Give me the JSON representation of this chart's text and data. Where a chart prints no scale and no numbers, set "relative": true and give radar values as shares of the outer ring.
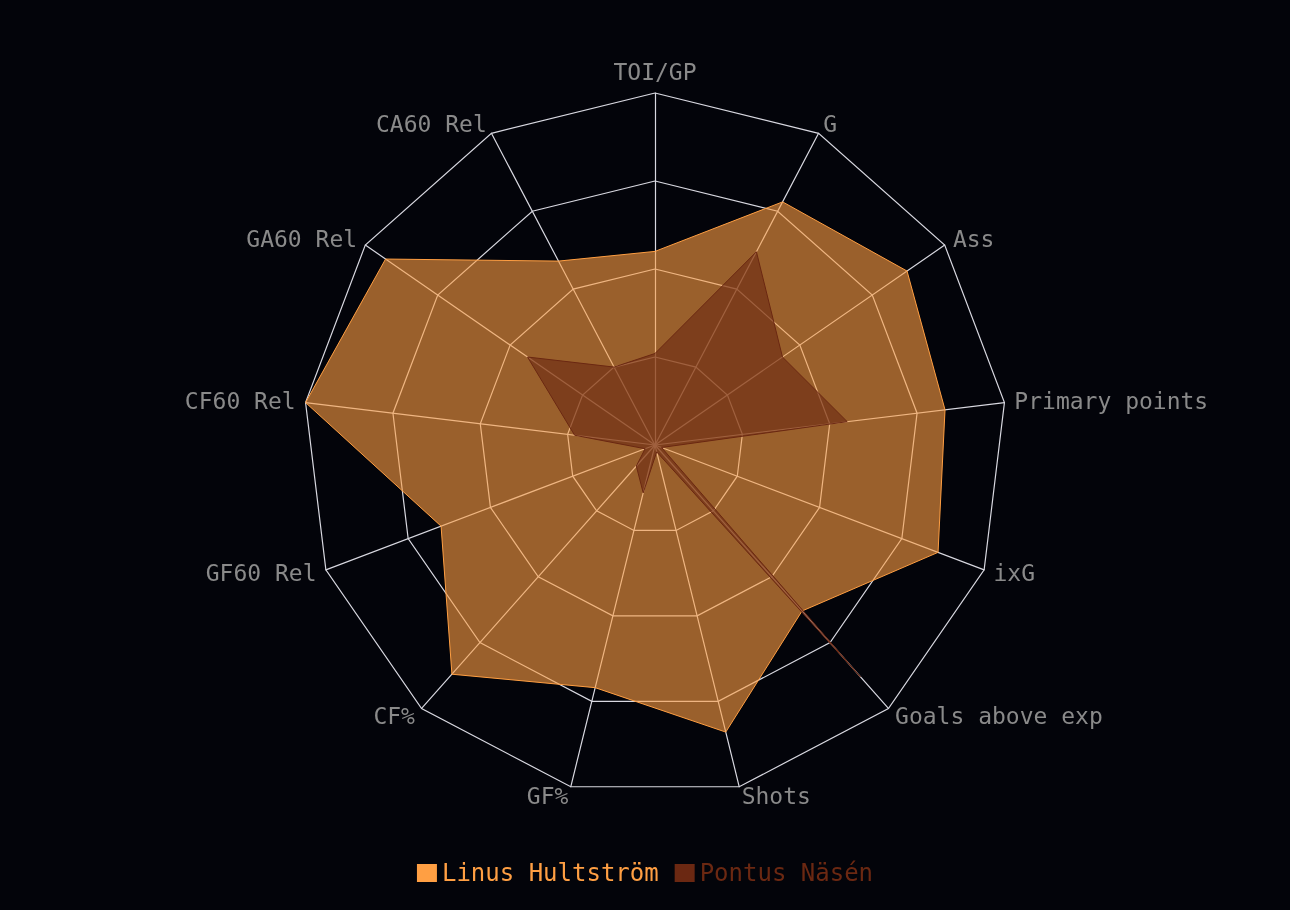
{
  "chart_data": {
    "type": "radar",
    "relative": true,
    "legend": "bottom",
    "categories": [
      "TOI/GP",
      "G",
      "Ass",
      "Primary points",
      "ixG",
      "Goals above exp",
      "Shots",
      "GF%",
      "CF%",
      "GF60 Rel",
      "CF60 Rel",
      "GA60 Rel",
      "CA60 Rel"
    ],
    "series": [
      {
        "name": "Linus Hultström",
        "color": "#ff9f43",
        "values": [
          0.55,
          0.78,
          0.87,
          0.83,
          0.86,
          0.63,
          0.84,
          0.71,
          0.87,
          0.65,
          1.0,
          0.93,
          0.59
        ]
      },
      {
        "name": "Pontus Näsén",
        "color": "#6b2812",
        "values": [
          0.26,
          0.62,
          0.44,
          0.55,
          0.02,
          0.88,
          0.02,
          0.14,
          0.08,
          0.03,
          0.23,
          0.44,
          0.25
        ]
      }
    ]
  }
}
